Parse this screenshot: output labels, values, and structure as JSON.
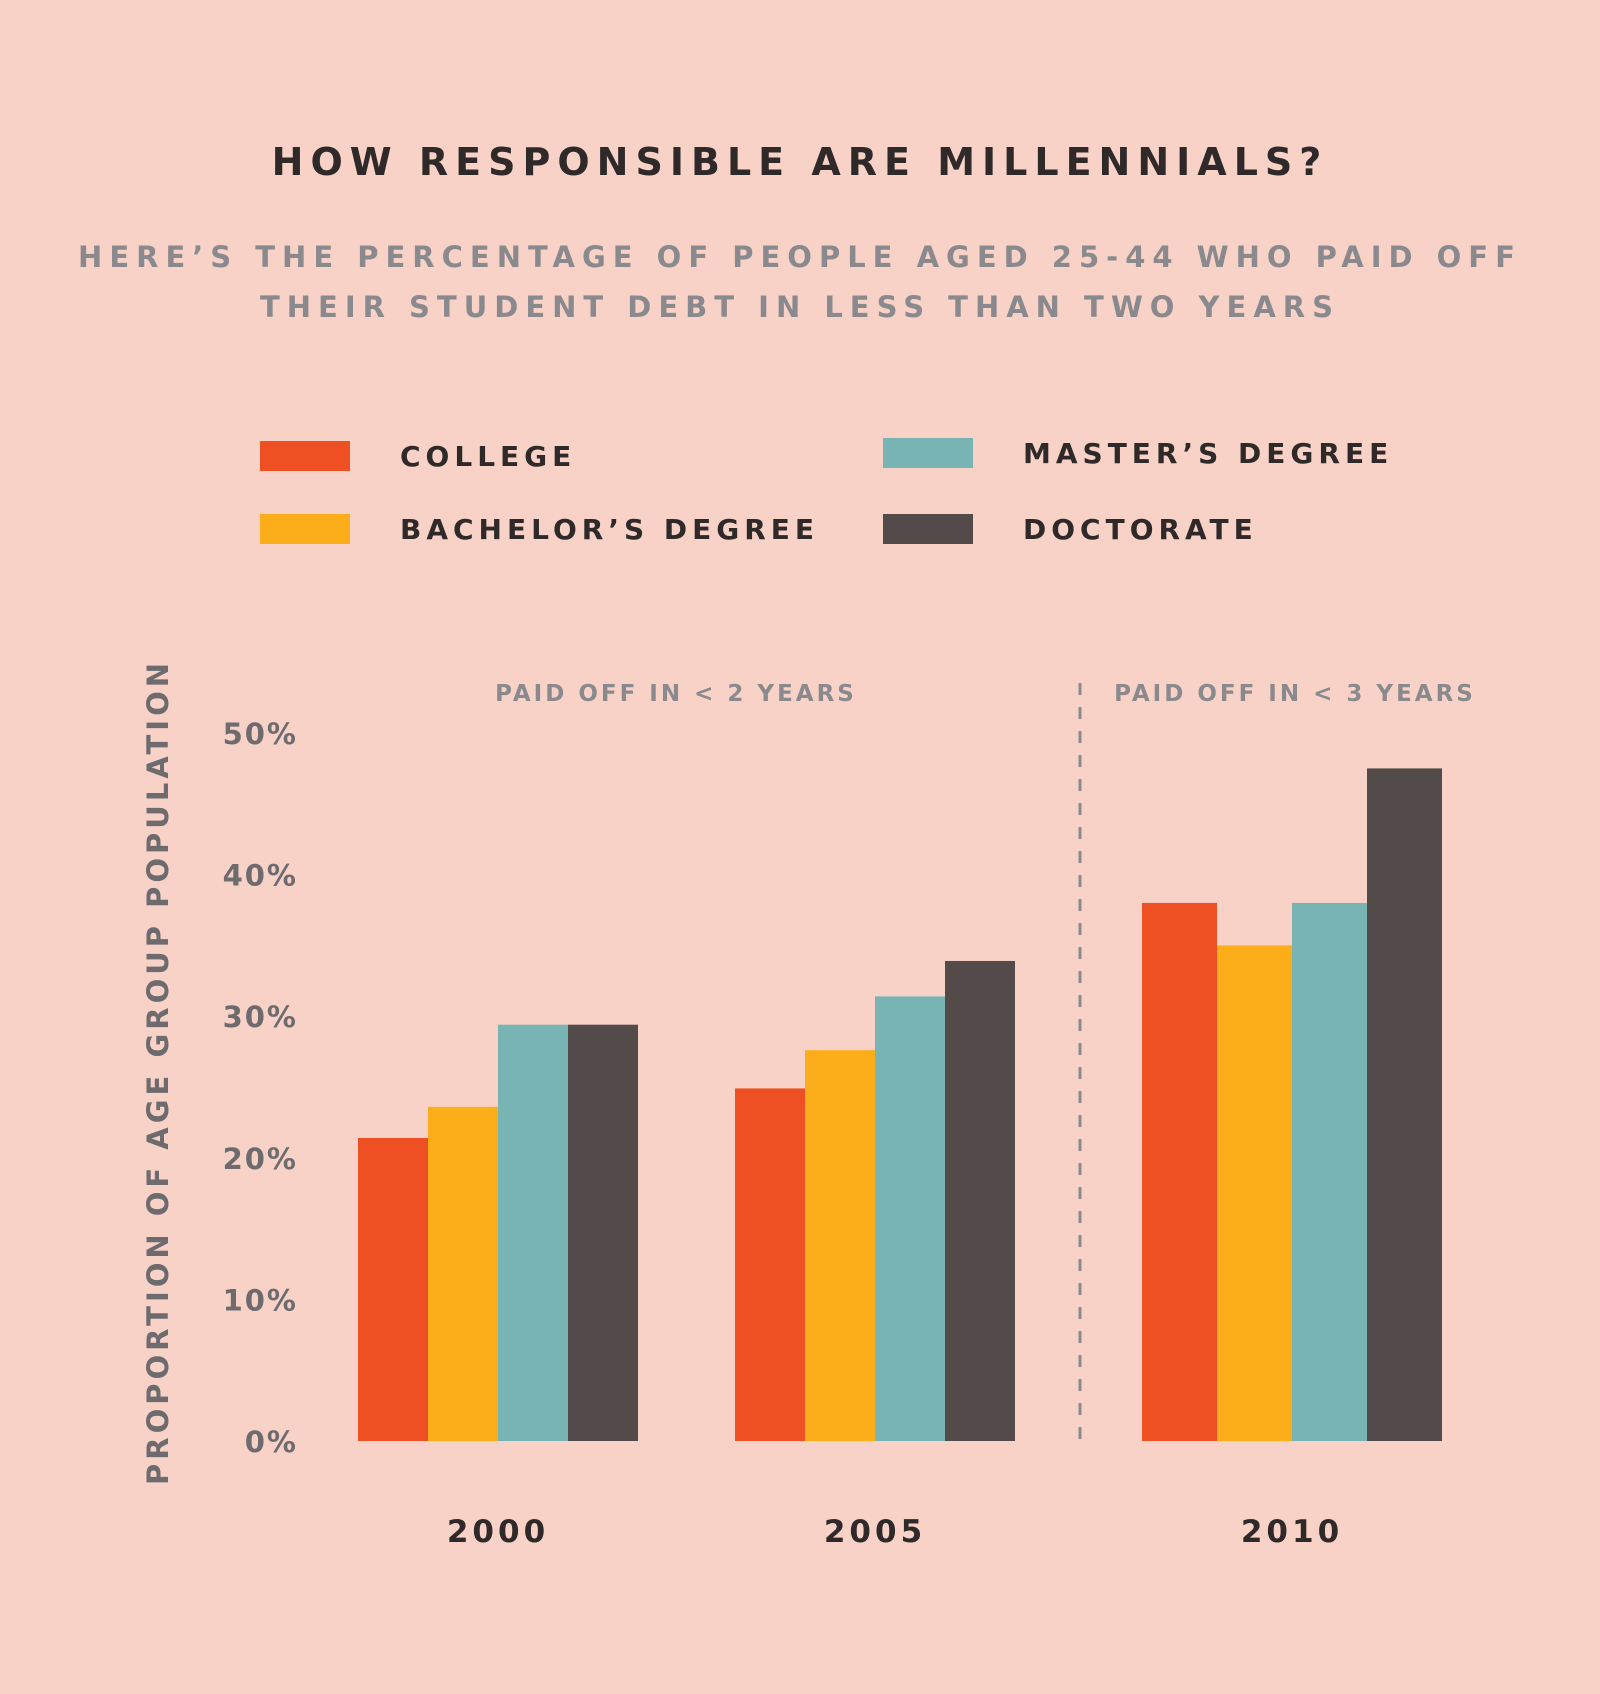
{
  "title": "HOW RESPONSIBLE ARE MILLENNIALS?",
  "subtitle_line1": "HERE’S THE PERCENTAGE OF PEOPLE AGED 25-44 WHO PAID OFF",
  "subtitle_line2": "THEIR STUDENT DEBT IN LESS THAN TWO YEARS",
  "legend": [
    {
      "label": "COLLEGE",
      "color": "#ee5023"
    },
    {
      "label": "BACHELOR’S DEGREE",
      "color": "#fbae1a"
    },
    {
      "label": "MASTER’S DEGREE",
      "color": "#79b4b4"
    },
    {
      "label": "DOCTORATE",
      "color": "#534a4a"
    }
  ],
  "chart_data": {
    "type": "bar",
    "title": "HOW RESPONSIBLE ARE MILLENNIALS?",
    "ylabel": "PROPORTION OF AGE GROUP POPULATION",
    "xlabel": "",
    "ylim": [
      0,
      50
    ],
    "yticks": [
      "0%",
      "10%",
      "20%",
      "30%",
      "40%",
      "50%"
    ],
    "categories": [
      "2000",
      "2005",
      "2010"
    ],
    "series": [
      {
        "name": "COLLEGE",
        "color": "#ee5023",
        "values": [
          21.4,
          24.9,
          38.0
        ]
      },
      {
        "name": "BACHELOR’S DEGREE",
        "color": "#fbae1a",
        "values": [
          23.6,
          27.6,
          35.0
        ]
      },
      {
        "name": "MASTER’S DEGREE",
        "color": "#79b4b4",
        "values": [
          29.4,
          31.4,
          38.0
        ]
      },
      {
        "name": "DOCTORATE",
        "color": "#534a4a",
        "values": [
          29.4,
          33.9,
          47.5
        ]
      }
    ],
    "annotations": [
      "PAID OFF IN < 2 YEARS",
      "PAID OFF IN < 3 YEARS"
    ]
  }
}
